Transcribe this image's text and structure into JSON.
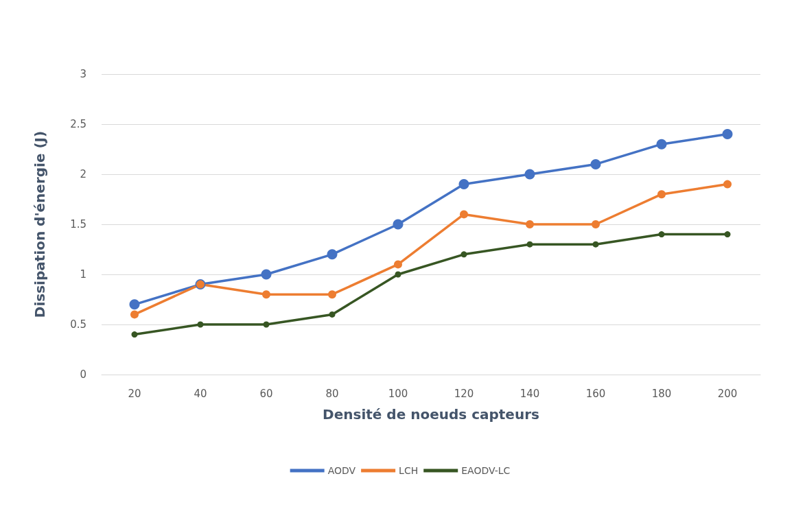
{
  "chart_data": {
    "type": "line",
    "xlabel": "Densité de noeuds capteurs",
    "ylabel": "Dissipation d'énergie (J)",
    "categories": [
      "20",
      "40",
      "60",
      "80",
      "100",
      "120",
      "140",
      "160",
      "180",
      "200"
    ],
    "series": [
      {
        "name": "AODV",
        "color": "#4472c4",
        "values": [
          0.7,
          0.9,
          1.0,
          1.2,
          1.5,
          1.9,
          2.0,
          2.1,
          2.3,
          2.4
        ]
      },
      {
        "name": "LCH",
        "color": "#ed7d31",
        "values": [
          0.6,
          0.9,
          0.8,
          0.8,
          1.1,
          1.6,
          1.5,
          1.5,
          1.8,
          1.9
        ]
      },
      {
        "name": "EAODV-LC",
        "color": "#375623",
        "values": [
          0.4,
          0.5,
          0.5,
          0.6,
          1.0,
          1.2,
          1.3,
          1.3,
          1.4,
          1.4
        ]
      }
    ],
    "ylim": [
      0,
      3
    ],
    "yticks": [
      0,
      0.5,
      1,
      1.5,
      2,
      2.5,
      3
    ],
    "grid": "y",
    "legend": "bottom",
    "marker": "circle",
    "line_style": "solid"
  }
}
